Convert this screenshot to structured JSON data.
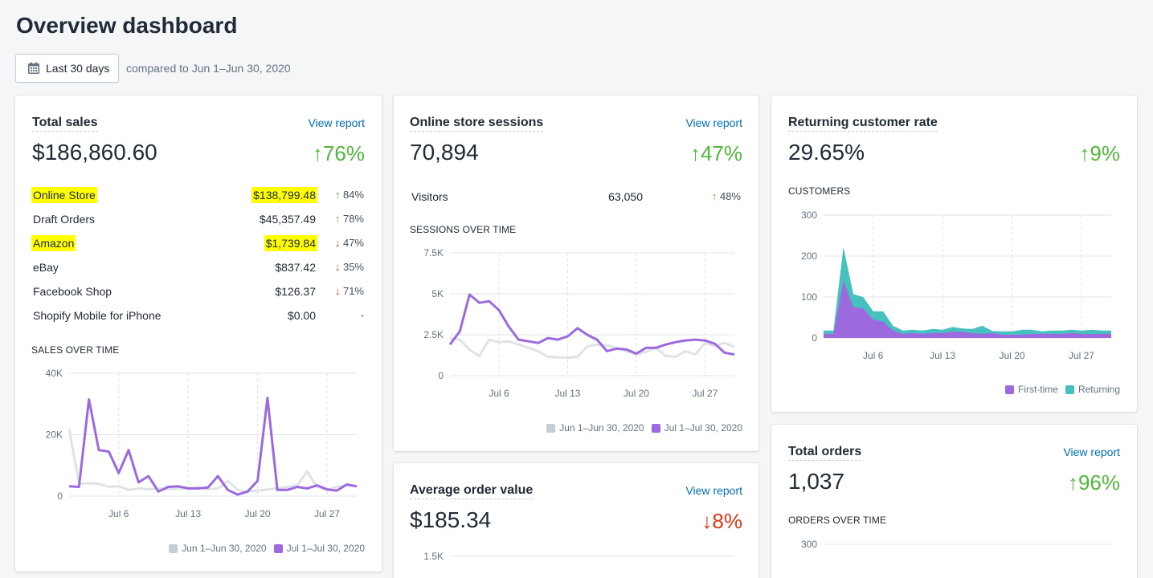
{
  "page": {
    "title": "Overview dashboard",
    "date_button": "Last 30 days",
    "compare_text": "compared to Jun 1–Jun 30, 2020"
  },
  "colors": {
    "current": "#9c6ade",
    "previous": "#dfe3e8",
    "returning": "#47c1bf",
    "up": "#50b83c",
    "down": "#de3618",
    "link": "#006fbb",
    "highlight": "#ffff00"
  },
  "total_sales": {
    "title": "Total sales",
    "view_report": "View report",
    "value": "$186,860.60",
    "change": "76%",
    "change_dir": "up",
    "rows": [
      {
        "label": "Online Store",
        "value": "$138,799.48",
        "change": "84%",
        "dir": "up",
        "highlighted": true
      },
      {
        "label": "Draft Orders",
        "value": "$45,357.49",
        "change": "78%",
        "dir": "up",
        "highlighted": false
      },
      {
        "label": "Amazon",
        "value": "$1,739.84",
        "change": "47%",
        "dir": "down",
        "highlighted": true
      },
      {
        "label": "eBay",
        "value": "$837.42",
        "change": "35%",
        "dir": "down",
        "highlighted": false
      },
      {
        "label": "Facebook Shop",
        "value": "$126.37",
        "change": "71%",
        "dir": "down",
        "highlighted": false
      },
      {
        "label": "Shopify Mobile for iPhone",
        "value": "$0.00",
        "change": "-",
        "dir": "none",
        "highlighted": false
      }
    ],
    "section_label": "SALES OVER TIME",
    "legend": [
      "Jun 1–Jun 30, 2020",
      "Jul 1–Jul 30, 2020"
    ]
  },
  "sessions": {
    "title": "Online store sessions",
    "view_report": "View report",
    "value": "70,894",
    "change": "47%",
    "change_dir": "up",
    "visitors_label": "Visitors",
    "visitors_value": "63,050",
    "visitors_change": "48%",
    "section_label": "SESSIONS OVER TIME",
    "legend": [
      "Jun 1–Jun 30, 2020",
      "Jul 1–Jul 30, 2020"
    ]
  },
  "returning": {
    "title": "Returning customer rate",
    "value": "29.65%",
    "change": "9%",
    "change_dir": "up",
    "section_label": "CUSTOMERS",
    "legend": [
      "First-time",
      "Returning"
    ]
  },
  "aov": {
    "title": "Average order value",
    "view_report": "View report",
    "value": "$185.34",
    "change": "8%",
    "change_dir": "down"
  },
  "orders": {
    "title": "Total orders",
    "view_report": "View report",
    "value": "1,037",
    "change": "96%",
    "change_dir": "up",
    "section_label": "ORDERS OVER TIME"
  },
  "chart_data": [
    {
      "id": "sales",
      "type": "line",
      "title": "SALES OVER TIME",
      "ylim": [
        0,
        40000
      ],
      "yticks": [
        "0",
        "20K",
        "40K"
      ],
      "xtick_labels": [
        "Jul 6",
        "Jul 13",
        "Jul 20",
        "Jul 27"
      ],
      "xtick_index": [
        5,
        12,
        19,
        26
      ],
      "series": [
        {
          "name": "Jun 1–Jun 30, 2020",
          "values": [
            22000,
            4000,
            4200,
            4000,
            3000,
            3200,
            2000,
            2500,
            2200,
            2500,
            2300,
            2400,
            2500,
            2800,
            2200,
            2500,
            5000,
            2000,
            1500,
            1800,
            2200,
            2500,
            3000,
            3500,
            8000,
            3000,
            2000,
            3000,
            3500,
            3200
          ]
        },
        {
          "name": "Jul 1–Jul 30, 2020",
          "values": [
            3200,
            3000,
            31500,
            15000,
            14500,
            7500,
            15000,
            4500,
            6500,
            1500,
            3000,
            3200,
            2500,
            2500,
            2800,
            6500,
            2000,
            500,
            1500,
            5000,
            32000,
            2000,
            2000,
            3000,
            2500,
            3500,
            2200,
            1800,
            3800,
            3200
          ]
        }
      ]
    },
    {
      "id": "sessions",
      "type": "line",
      "title": "SESSIONS OVER TIME",
      "ylim": [
        0,
        7500
      ],
      "yticks": [
        "0",
        "2.5K",
        "5K",
        "7.5K"
      ],
      "xtick_labels": [
        "Jul 6",
        "Jul 13",
        "Jul 20",
        "Jul 27"
      ],
      "xtick_index": [
        5,
        12,
        19,
        26
      ],
      "series": [
        {
          "name": "Jun 1–Jun 30, 2020",
          "values": [
            2300,
            2200,
            1600,
            1200,
            2200,
            2050,
            2100,
            1900,
            1700,
            1500,
            1150,
            1120,
            1100,
            1150,
            1800,
            1900,
            1850,
            1700,
            1500,
            1300,
            1450,
            1700,
            1200,
            1150,
            1500,
            1300,
            2000,
            1800,
            2000,
            1750
          ]
        },
        {
          "name": "Jul 1–Jul 30, 2020",
          "values": [
            1900,
            2700,
            4950,
            4450,
            4550,
            4000,
            3000,
            2200,
            2100,
            2000,
            2300,
            2200,
            2400,
            2900,
            2500,
            2200,
            1500,
            1650,
            1600,
            1350,
            1700,
            1700,
            1900,
            2050,
            2150,
            2200,
            2150,
            1950,
            1400,
            1300
          ]
        }
      ]
    },
    {
      "id": "customers",
      "type": "area",
      "title": "CUSTOMERS",
      "ylim": [
        0,
        300
      ],
      "yticks": [
        "0",
        "100",
        "200",
        "300"
      ],
      "xtick_labels": [
        "Jul 6",
        "Jul 13",
        "Jul 20",
        "Jul 27"
      ],
      "xtick_index": [
        5,
        12,
        19,
        26
      ],
      "series": [
        {
          "name": "First-time",
          "values": [
            10,
            10,
            140,
            75,
            72,
            45,
            40,
            18,
            10,
            12,
            10,
            12,
            12,
            15,
            15,
            12,
            10,
            12,
            8,
            8,
            8,
            10,
            10,
            10,
            10,
            12,
            10,
            10,
            10,
            10
          ]
        },
        {
          "name": "Returning",
          "values": [
            8,
            8,
            82,
            32,
            28,
            20,
            25,
            12,
            8,
            8,
            8,
            10,
            8,
            12,
            8,
            10,
            20,
            5,
            8,
            8,
            12,
            10,
            6,
            8,
            8,
            8,
            8,
            10,
            8,
            8
          ]
        }
      ]
    },
    {
      "id": "aov",
      "type": "line",
      "title": "",
      "ylim": [
        0,
        1500
      ],
      "yticks": [
        "1.5K"
      ],
      "series": []
    },
    {
      "id": "orders",
      "type": "line",
      "title": "ORDERS OVER TIME",
      "ylim": [
        0,
        300
      ],
      "yticks": [
        "300"
      ],
      "series": []
    }
  ]
}
